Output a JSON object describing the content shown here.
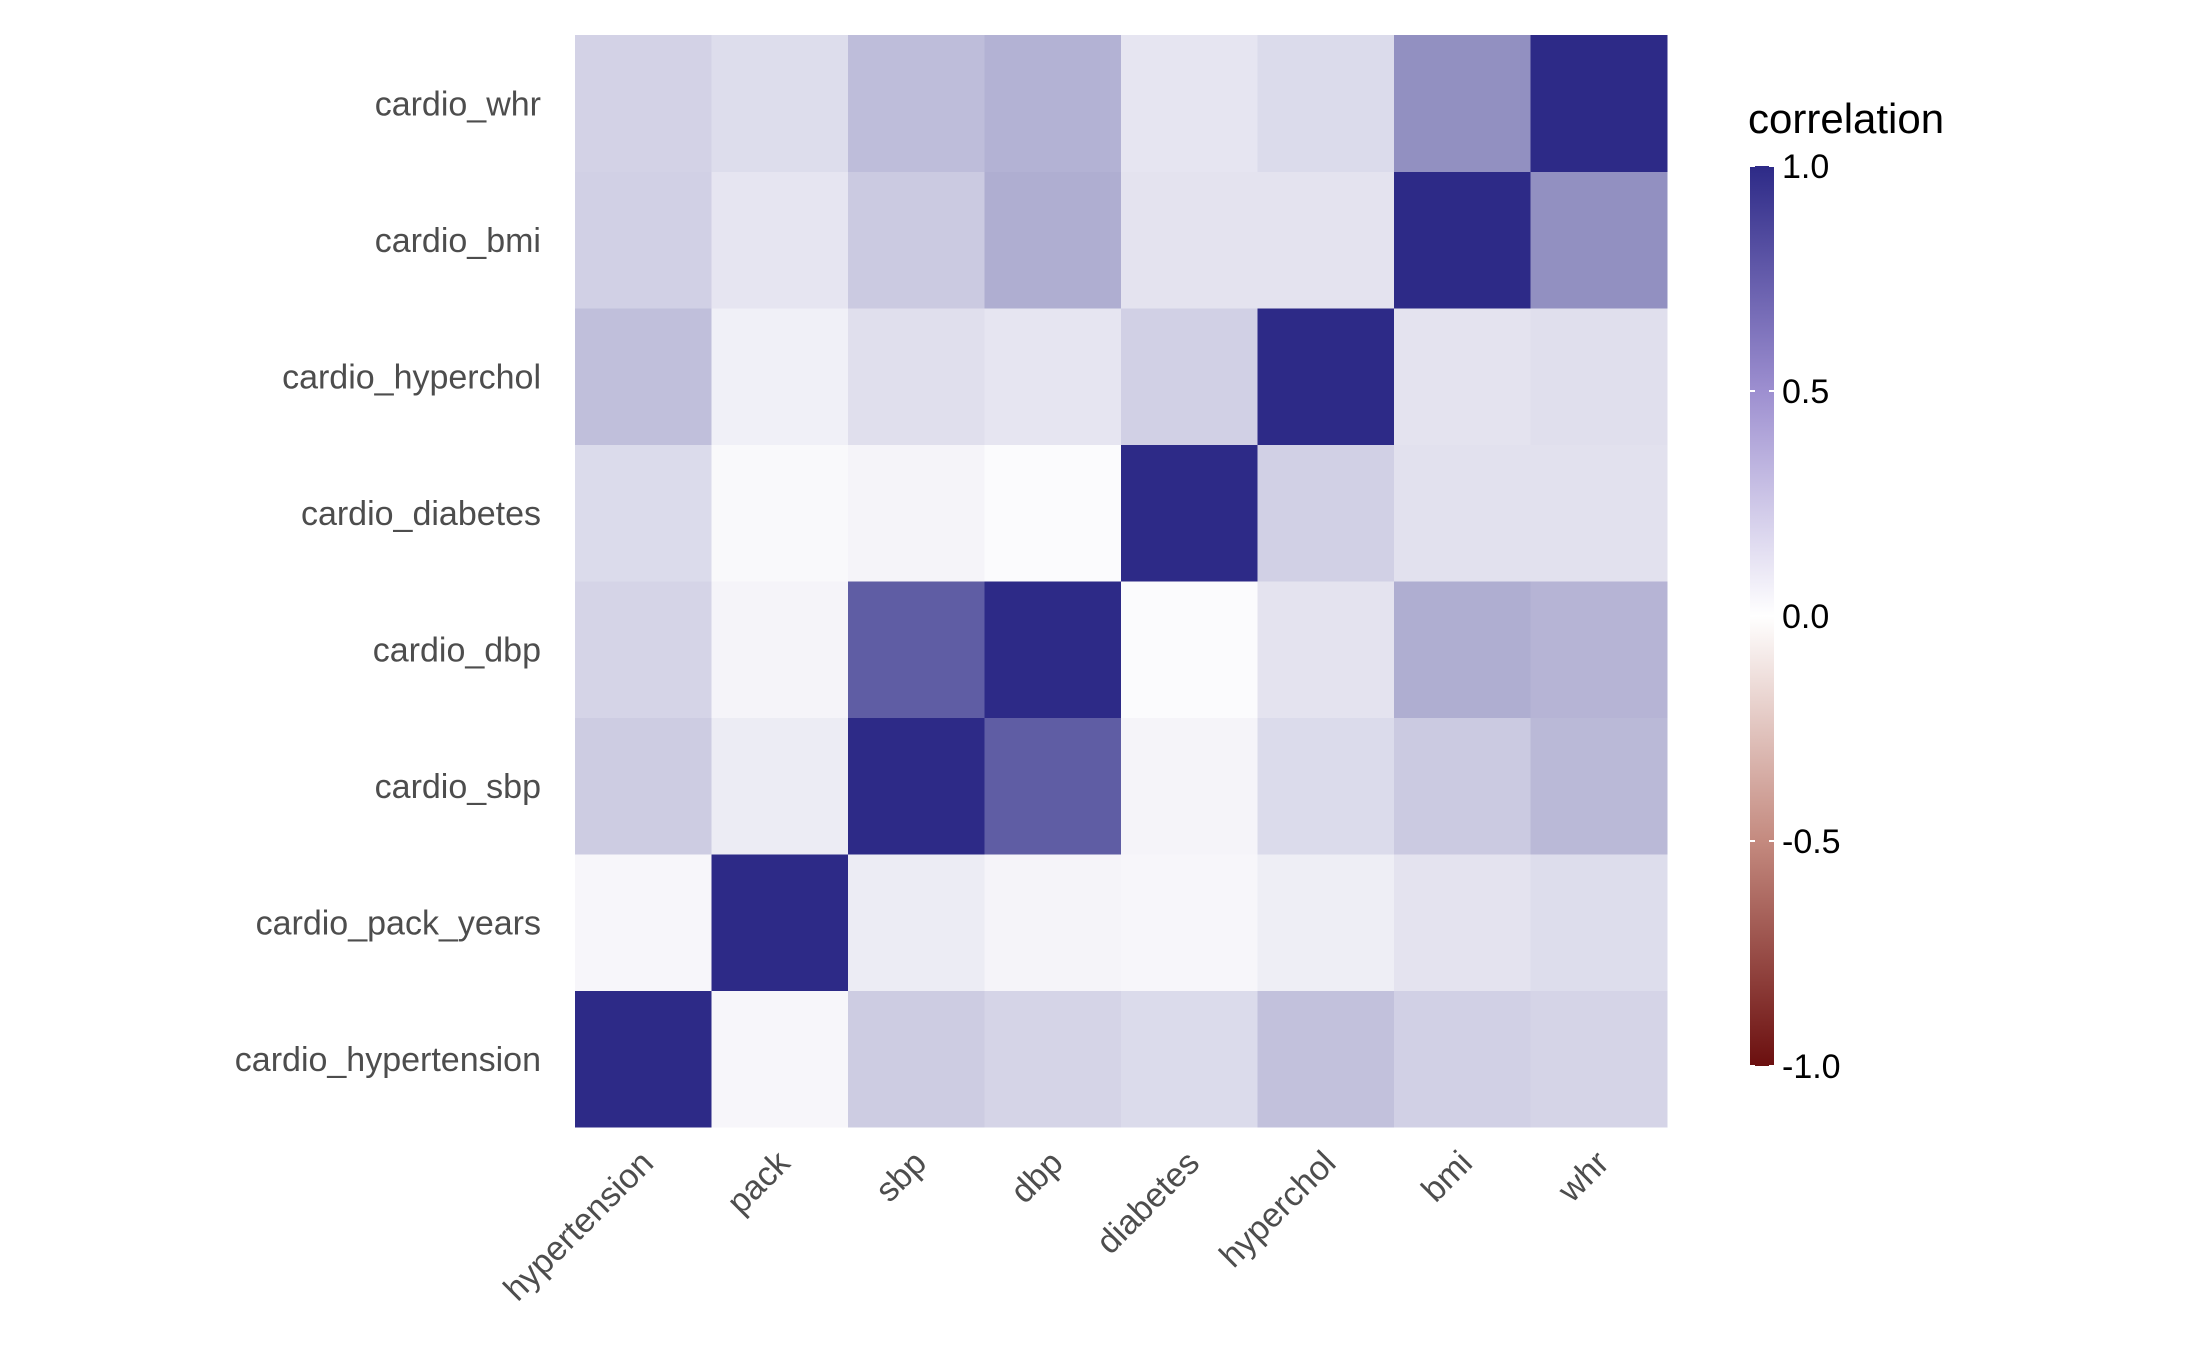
{
  "chart_data": {
    "type": "heatmap",
    "x_categories": [
      "hypertension",
      "pack",
      "sbp",
      "dbp",
      "diabetes",
      "hyperchol",
      "bmi",
      "whr"
    ],
    "y_categories": [
      "cardio_hypertension",
      "cardio_pack_years",
      "cardio_sbp",
      "cardio_dbp",
      "cardio_diabetes",
      "cardio_hyperchol",
      "cardio_bmi",
      "cardio_whr"
    ],
    "values": [
      [
        1.0,
        0.04,
        0.24,
        0.2,
        0.17,
        0.29,
        0.22,
        0.2
      ],
      [
        0.04,
        1.0,
        0.09,
        0.05,
        0.04,
        0.08,
        0.13,
        0.16
      ],
      [
        0.24,
        0.09,
        1.0,
        0.76,
        0.05,
        0.17,
        0.25,
        0.33
      ],
      [
        0.2,
        0.05,
        0.76,
        1.0,
        0.02,
        0.13,
        0.38,
        0.35
      ],
      [
        0.17,
        0.03,
        0.05,
        0.02,
        1.0,
        0.22,
        0.14,
        0.14
      ],
      [
        0.3,
        0.07,
        0.15,
        0.12,
        0.22,
        1.0,
        0.13,
        0.15
      ],
      [
        0.22,
        0.12,
        0.25,
        0.38,
        0.13,
        0.13,
        1.0,
        0.52
      ],
      [
        0.21,
        0.16,
        0.31,
        0.36,
        0.12,
        0.17,
        0.52,
        1.0
      ]
    ],
    "xlabel": "",
    "ylabel": "",
    "legend": {
      "title": "correlation",
      "ticks": [
        "1.0",
        "0.5",
        "0.0",
        "-0.5",
        "-1.0"
      ],
      "range": [
        -1.0,
        1.0
      ],
      "placement": "right"
    },
    "colors": {
      "low": "#6b0f0f",
      "mid": "#ffffff",
      "high": "#2d2a87"
    },
    "grid": false
  }
}
